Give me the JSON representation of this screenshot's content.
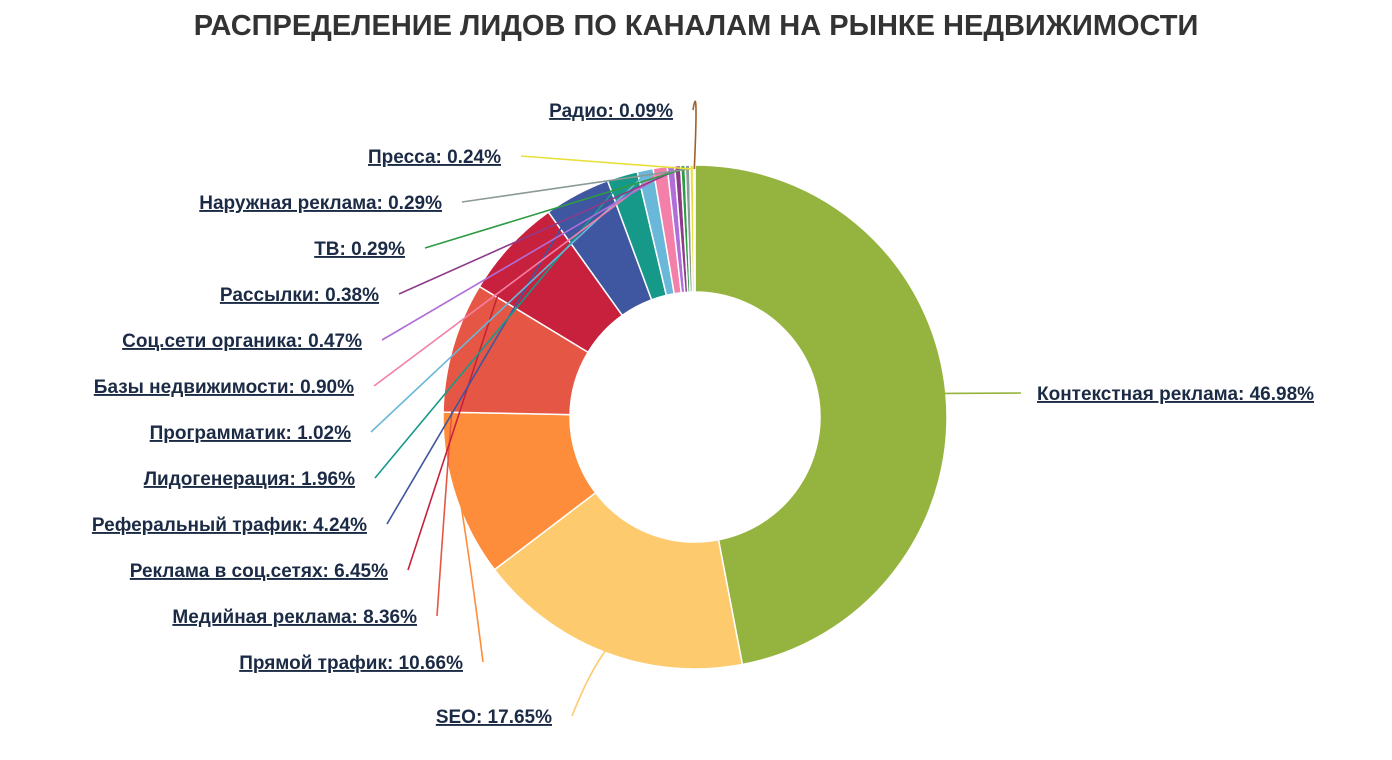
{
  "chart_data": {
    "type": "pie",
    "variant": "donut",
    "title": "РАСПРЕДЕЛЕНИЕ ЛИДОВ ПО КАНАЛАМ НА РЫНКЕ НЕДВИЖИМОСТИ",
    "unit": "%",
    "slices": [
      {
        "label": "Контекстная реклама",
        "value": 46.98,
        "text": "Контекстная реклама: 46.98%",
        "color": "#95b43f"
      },
      {
        "label": "SEO",
        "value": 17.65,
        "text": "SEO: 17.65%",
        "color": "#fdcb6e"
      },
      {
        "label": "Прямой трафик",
        "value": 10.66,
        "text": "Прямой трафик: 10.66%",
        "color": "#fd8c3b"
      },
      {
        "label": "Медийная реклама",
        "value": 8.36,
        "text": "Медийная реклама: 8.36%",
        "color": "#e55744"
      },
      {
        "label": "Реклама в соц.сетях",
        "value": 6.45,
        "text": "Реклама в соц.сетях: 6.45%",
        "color": "#c8213d"
      },
      {
        "label": "Реферальный трафик",
        "value": 4.24,
        "text": "Реферальный трафик: 4.24%",
        "color": "#3f56a0"
      },
      {
        "label": "Лидогенерация",
        "value": 1.96,
        "text": "Лидогенерация: 1.96%",
        "color": "#17998a"
      },
      {
        "label": "Программатик",
        "value": 1.02,
        "text": "Программатик: 1.02%",
        "color": "#69b7d9"
      },
      {
        "label": "Базы недвижимости",
        "value": 0.9,
        "text": "Базы недвижимости: 0.90%",
        "color": "#f47fa8"
      },
      {
        "label": "Соц.сети органика",
        "value": 0.47,
        "text": "Соц.сети органика: 0.47%",
        "color": "#b06ed9"
      },
      {
        "label": "Рассылки",
        "value": 0.38,
        "text": "Рассылки: 0.38%",
        "color": "#8e3b8a"
      },
      {
        "label": "ТВ",
        "value": 0.29,
        "text": "ТВ: 0.29%",
        "color": "#2e9b45"
      },
      {
        "label": "Наружная реклама",
        "value": 0.29,
        "text": "Наружная реклама: 0.29%",
        "color": "#8a9a94"
      },
      {
        "label": "Пресса",
        "value": 0.24,
        "text": "Пресса: 0.24%",
        "color": "#e8e03a"
      },
      {
        "label": "Радио",
        "value": 0.09,
        "text": "Радио: 0.09%",
        "color": "#a0602b"
      }
    ],
    "legend": "none"
  }
}
